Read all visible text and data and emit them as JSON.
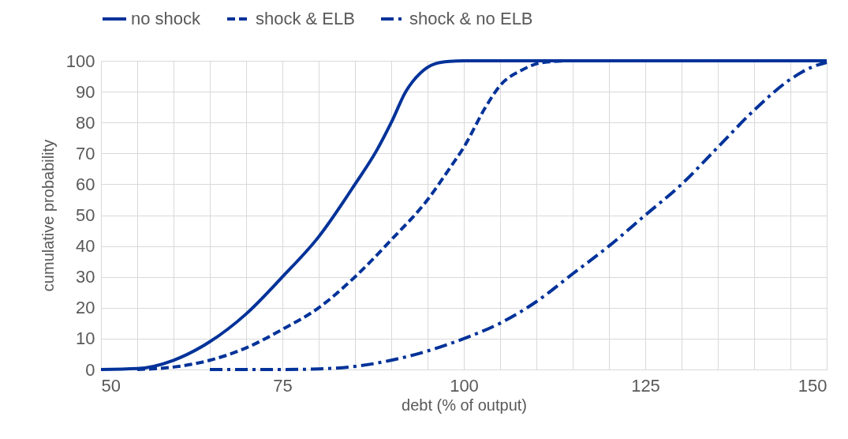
{
  "chart_data": {
    "type": "line",
    "xlabel": "debt (% of output)",
    "ylabel": "cumulative probability",
    "xlim": [
      50,
      150
    ],
    "ylim": [
      0,
      100
    ],
    "xticks": [
      50,
      {
        "value": 55,
        "label": null
      },
      {
        "value": 60,
        "label": null
      },
      {
        "value": 65,
        "label": null
      },
      {
        "value": 70,
        "label": null
      },
      75,
      {
        "value": 80,
        "label": null
      },
      {
        "value": 85,
        "label": null
      },
      {
        "value": 90,
        "label": null
      },
      {
        "value": 95,
        "label": null
      },
      100,
      {
        "value": 105,
        "label": null
      },
      {
        "value": 110,
        "label": null
      },
      {
        "value": 115,
        "label": null
      },
      {
        "value": 120,
        "label": null
      },
      125,
      {
        "value": 130,
        "label": null
      },
      {
        "value": 135,
        "label": null
      },
      {
        "value": 140,
        "label": null
      },
      {
        "value": 145,
        "label": null
      },
      150
    ],
    "yticks": [
      0,
      10,
      20,
      30,
      40,
      50,
      60,
      70,
      80,
      90,
      100
    ],
    "grid": true,
    "legend": "top",
    "marker": "none",
    "series": [
      {
        "name": "no shock",
        "color": "#003299",
        "line_style": "solid",
        "x": [
          50,
          55,
          60,
          65,
          70,
          75,
          80,
          85,
          88,
          90,
          92,
          94,
          96,
          98,
          100,
          150
        ],
        "values": [
          0,
          0.3,
          3,
          9,
          18,
          30,
          43,
          60,
          71,
          80,
          90,
          96,
          99,
          99.8,
          100,
          100
        ]
      },
      {
        "name": "shock & ELB",
        "color": "#003299",
        "line_style": "dashed",
        "x": [
          55,
          60,
          65,
          70,
          75,
          80,
          85,
          90,
          95,
          98,
          100,
          103,
          105,
          108,
          111,
          115,
          150
        ],
        "values": [
          0,
          0.8,
          3,
          7,
          13,
          20,
          30,
          42,
          55,
          65,
          72,
          85,
          92,
          97,
          99.5,
          100,
          100
        ]
      },
      {
        "name": "shock & no ELB",
        "color": "#003299",
        "line_style": "dashdot",
        "x": [
          65,
          75,
          80,
          85,
          90,
          95,
          100,
          105,
          110,
          115,
          120,
          125,
          130,
          135,
          140,
          145,
          148,
          150
        ],
        "values": [
          0,
          0,
          0.2,
          1,
          3,
          6,
          10,
          15,
          22,
          31,
          40,
          50,
          60,
          72,
          84,
          94,
          98,
          99.5
        ]
      }
    ]
  }
}
